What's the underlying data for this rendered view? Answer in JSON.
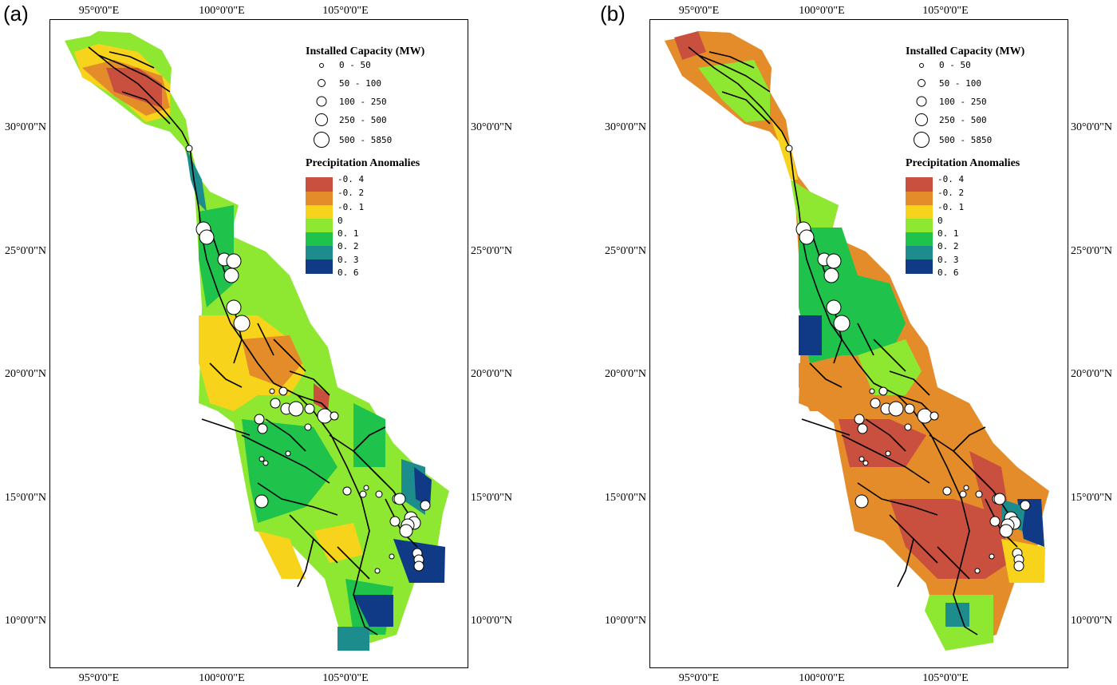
{
  "panels": [
    {
      "label": "(a)"
    },
    {
      "label": "(b)"
    }
  ],
  "axes": {
    "lon_ticks": [
      "95°0'0\"E",
      "100°0'0\"E",
      "105°0'0\"E"
    ],
    "lat_ticks": [
      "30°0'0\"N",
      "25°0'0\"N",
      "20°0'0\"N",
      "15°0'0\"N",
      "10°0'0\"N"
    ]
  },
  "legend": {
    "capacity_title": "Installed Capacity (MW)",
    "capacity_classes": [
      "0 - 50",
      "50 - 100",
      "100 - 250",
      "250 - 500",
      "500 - 5850"
    ],
    "precip_title": "Precipitation Anomalies",
    "precip_classes": [
      "-0. 4",
      "-0. 2",
      "-0. 1",
      "0",
      "0. 1",
      "0. 2",
      "0. 3",
      "0. 6"
    ],
    "precip_colors": [
      "#c9503e",
      "#e48c2a",
      "#f7d31c",
      "#8ee832",
      "#1fc24a",
      "#1c8c8c",
      "#103a86"
    ]
  },
  "colors": {
    "strong_neg": "#c9503e",
    "neg": "#e48c2a",
    "weak_neg": "#f7d31c",
    "weak_pos": "#8ee832",
    "pos": "#1fc24a",
    "strong_pos": "#1c8c8c",
    "very_strong_pos": "#103a86"
  }
}
